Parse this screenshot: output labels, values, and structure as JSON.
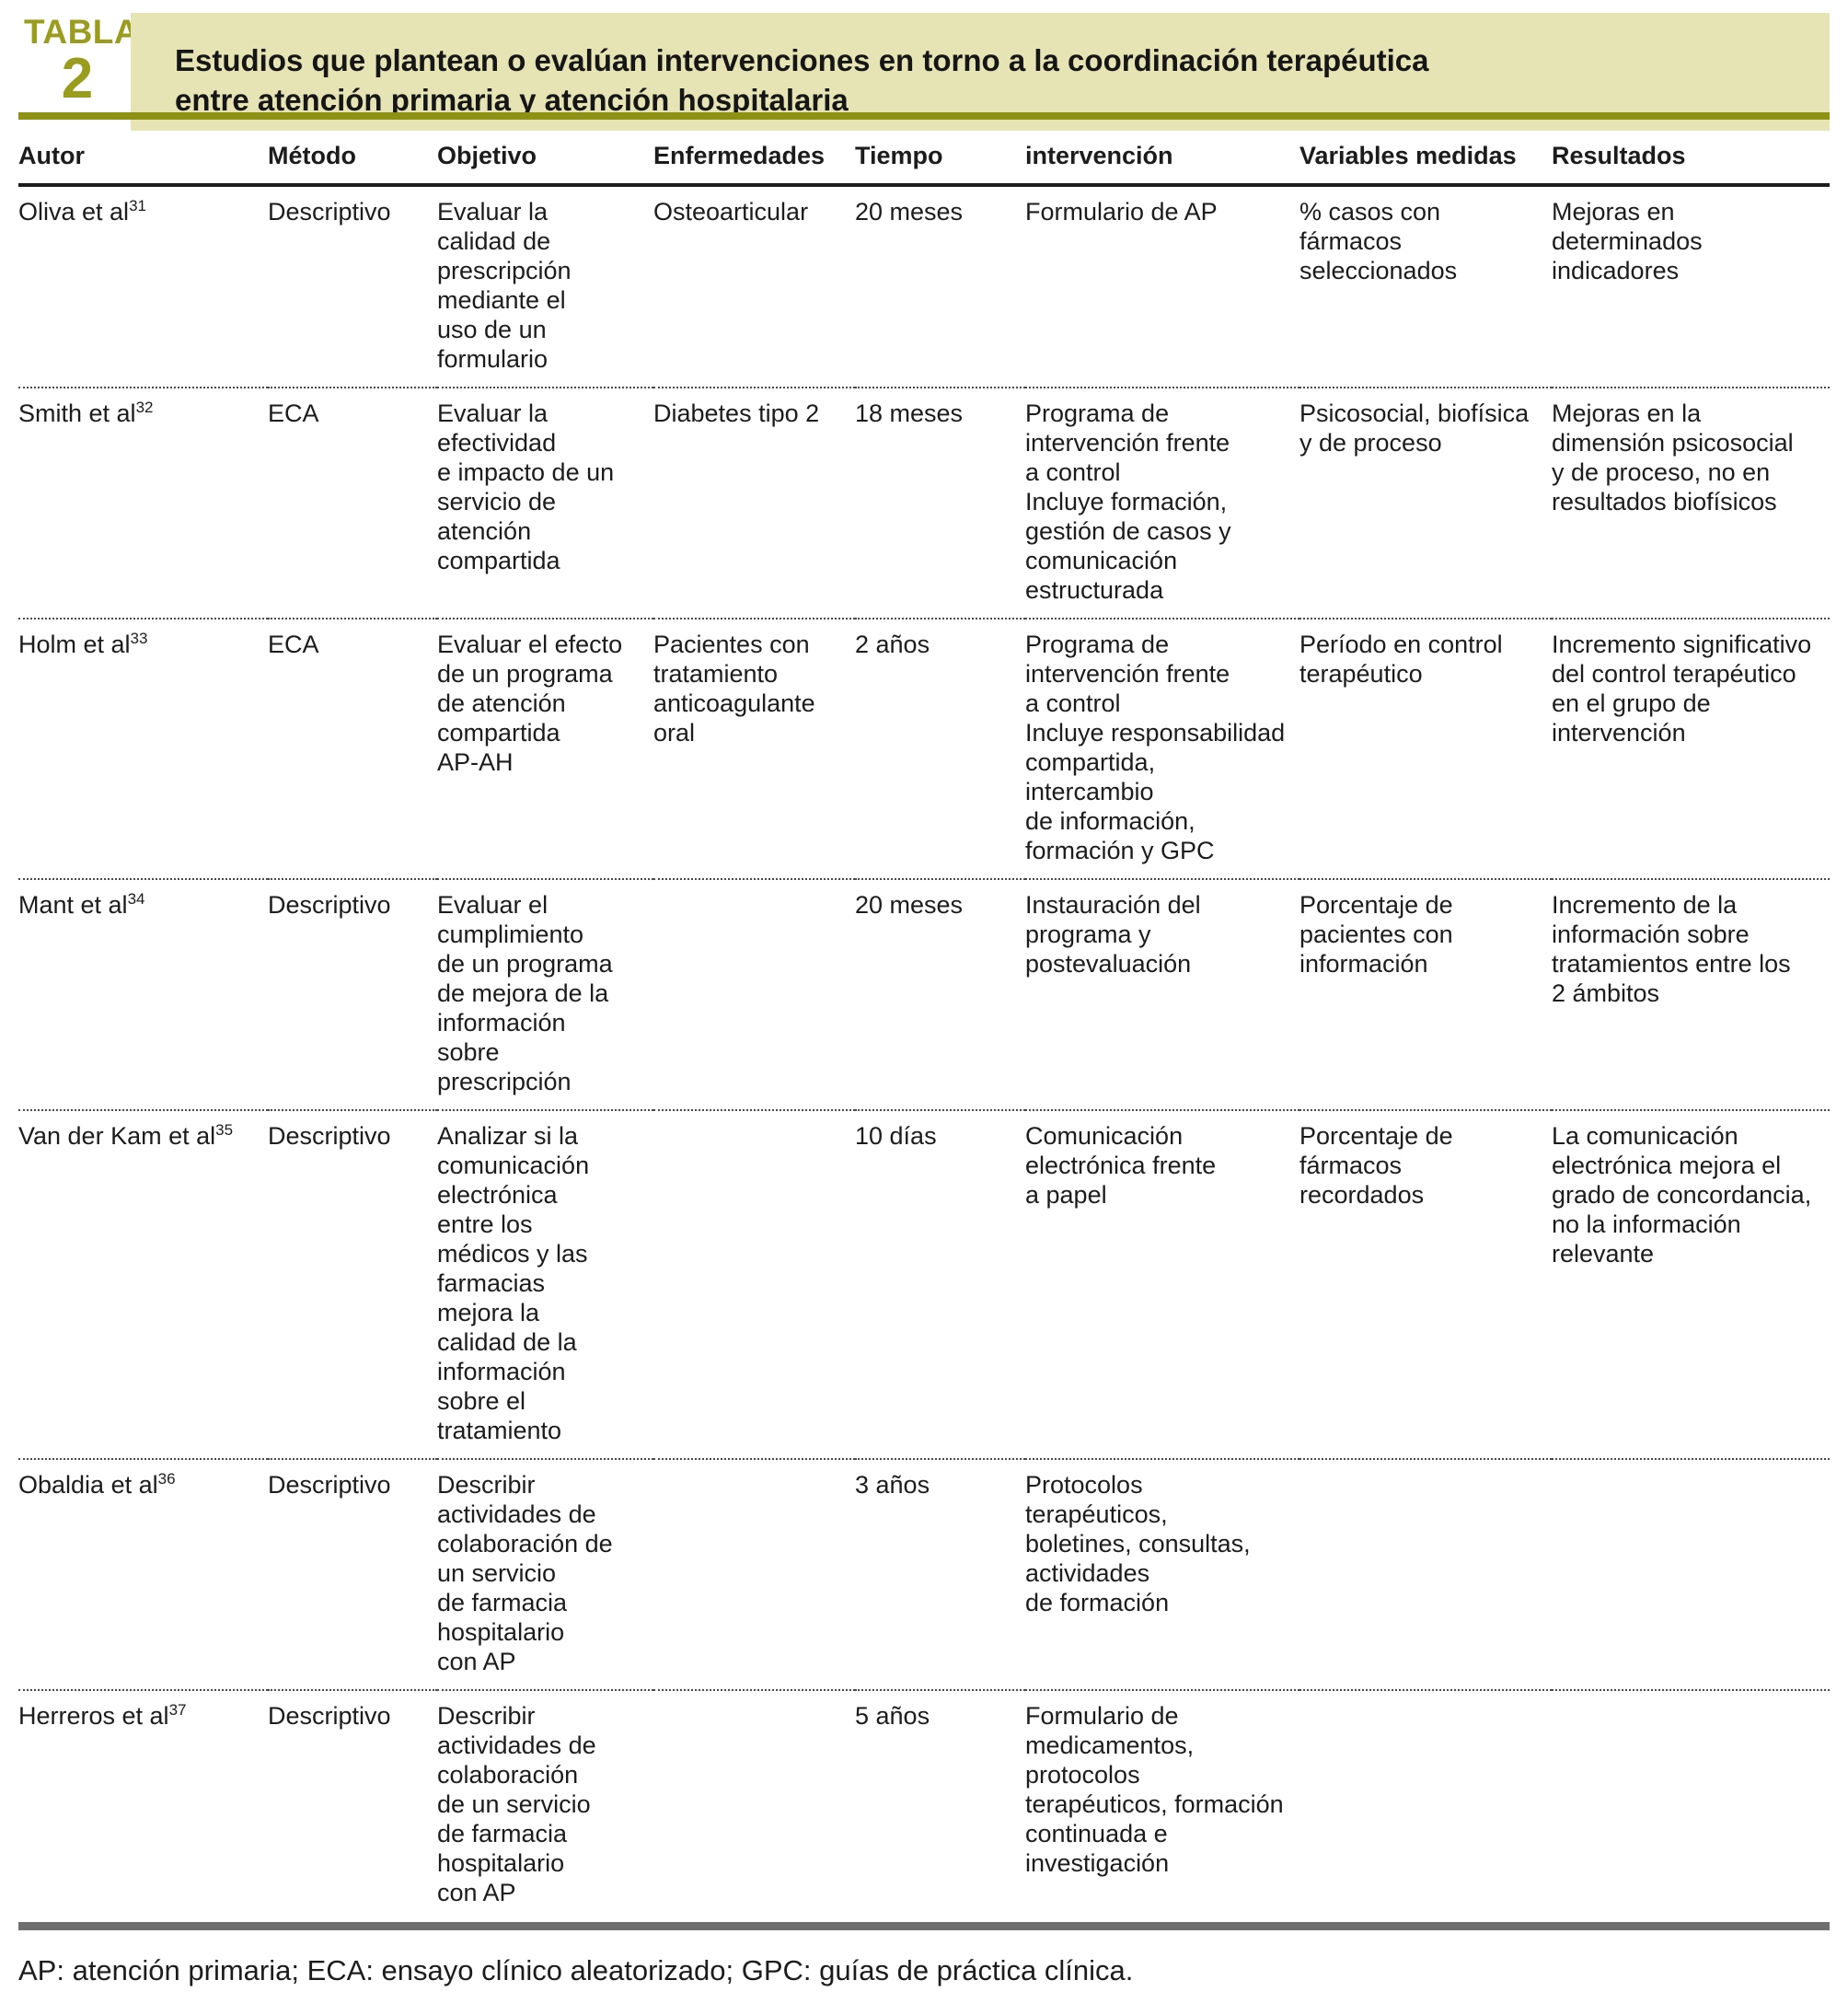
{
  "table_label": {
    "word": "TABLA",
    "number": "2"
  },
  "title": {
    "line1": "Estudios que plantean o evalúan intervenciones en torno a la coordinación terapéutica",
    "line2": "entre atención primaria y atención hospitalaria"
  },
  "columns": [
    "Autor",
    "Método",
    "Objetivo",
    "Enfermedades",
    "Tiempo",
    "intervención",
    "Variables medidas",
    "Resultados"
  ],
  "rows": [
    {
      "author": "Oliva et al",
      "ref": "31",
      "metodo": "Descriptivo",
      "objetivo": [
        "Evaluar la",
        "calidad de",
        "prescripción",
        "mediante el",
        "uso de un",
        "formulario"
      ],
      "enfermedades": [
        "Osteoarticular"
      ],
      "tiempo": "20 meses",
      "intervencion": [
        "Formulario de AP"
      ],
      "variables": [
        "% casos con",
        "fármacos",
        "seleccionados"
      ],
      "resultados": [
        "Mejoras en determinados",
        "indicadores"
      ]
    },
    {
      "author": "Smith et al",
      "ref": "32",
      "metodo": "ECA",
      "objetivo": [
        "Evaluar la",
        "efectividad",
        "e impacto de un",
        "servicio de",
        "atención",
        "compartida"
      ],
      "enfermedades": [
        "Diabetes tipo 2"
      ],
      "tiempo": "18 meses",
      "intervencion": [
        "Programa de",
        "intervención frente",
        "a control",
        "Incluye formación,",
        "gestión de casos y",
        "comunicación",
        "estructurada"
      ],
      "variables": [
        "Psicosocial, biofísica",
        "y de proceso"
      ],
      "resultados": [
        "Mejoras en la",
        "dimensión psicosocial",
        "y de proceso, no en",
        "resultados biofísicos"
      ]
    },
    {
      "author": "Holm et al",
      "ref": "33",
      "metodo": "ECA",
      "objetivo": [
        "Evaluar el efecto",
        "de un programa",
        "de atención",
        "compartida",
        "AP-AH"
      ],
      "enfermedades": [
        "Pacientes con",
        "tratamiento",
        "anticoagulante",
        "oral"
      ],
      "tiempo": "2 años",
      "intervencion": [
        "Programa de",
        "intervención frente",
        "a control",
        "Incluye responsabilidad",
        "compartida, intercambio",
        "de información,",
        "formación y GPC"
      ],
      "variables": [
        "Período en control",
        "terapéutico"
      ],
      "resultados": [
        "Incremento significativo",
        "del control terapéutico",
        "en el grupo de",
        "intervención"
      ]
    },
    {
      "author": "Mant et al",
      "ref": "34",
      "metodo": "Descriptivo",
      "objetivo": [
        "Evaluar el",
        "cumplimiento",
        "de un programa",
        "de mejora de la",
        "información",
        "sobre",
        "prescripción"
      ],
      "enfermedades": [],
      "tiempo": "20 meses",
      "intervencion": [
        "Instauración del",
        "programa y",
        "postevaluación"
      ],
      "variables": [
        "Porcentaje de",
        "pacientes con",
        "información"
      ],
      "resultados": [
        "Incremento de la",
        "información sobre",
        "tratamientos entre los",
        "2 ámbitos"
      ]
    },
    {
      "author": "Van der Kam et al",
      "ref": "35",
      "metodo": "Descriptivo",
      "objetivo": [
        "Analizar si la",
        "comunicación",
        "electrónica",
        "entre los",
        "médicos y las",
        "farmacias",
        "mejora la",
        "calidad de la",
        "información",
        "sobre el",
        "tratamiento"
      ],
      "enfermedades": [],
      "tiempo": "10 días",
      "intervencion": [
        "Comunicación",
        "electrónica frente",
        "a papel"
      ],
      "variables": [
        "Porcentaje de",
        "fármacos",
        "recordados"
      ],
      "resultados": [
        "La comunicación",
        "electrónica mejora el",
        "grado de concordancia,",
        "no la información",
        "relevante"
      ]
    },
    {
      "author": "Obaldia et al",
      "ref": "36",
      "metodo": "Descriptivo",
      "objetivo": [
        "Describir",
        "actividades de",
        "colaboración de",
        "un servicio",
        "de farmacia",
        "hospitalario",
        "con AP"
      ],
      "enfermedades": [],
      "tiempo": "3 años",
      "intervencion": [
        "Protocolos terapéuticos,",
        "boletines, consultas,",
        "actividades",
        "de formación"
      ],
      "variables": [],
      "resultados": []
    },
    {
      "author": "Herreros et al",
      "ref": "37",
      "metodo": "Descriptivo",
      "objetivo": [
        "Describir",
        "actividades de",
        "colaboración",
        "de un servicio",
        "de farmacia",
        "hospitalario",
        "con AP"
      ],
      "enfermedades": [],
      "tiempo": "5 años",
      "intervencion": [
        "Formulario de",
        "medicamentos,",
        "protocolos",
        "terapéuticos, formación",
        "continuada e",
        "investigación"
      ],
      "variables": [],
      "resultados": []
    }
  ],
  "footnote": "AP: atención primaria; ECA: ensayo clínico aleatorizado; GPC: guías de práctica clínica.",
  "colors": {
    "olive_text": "#9a9c1e",
    "olive_rule": "#8e9214",
    "title_box_bg": "#e6e4b4",
    "gray_rule": "#6f6f6f",
    "text": "#1c1c1c"
  }
}
